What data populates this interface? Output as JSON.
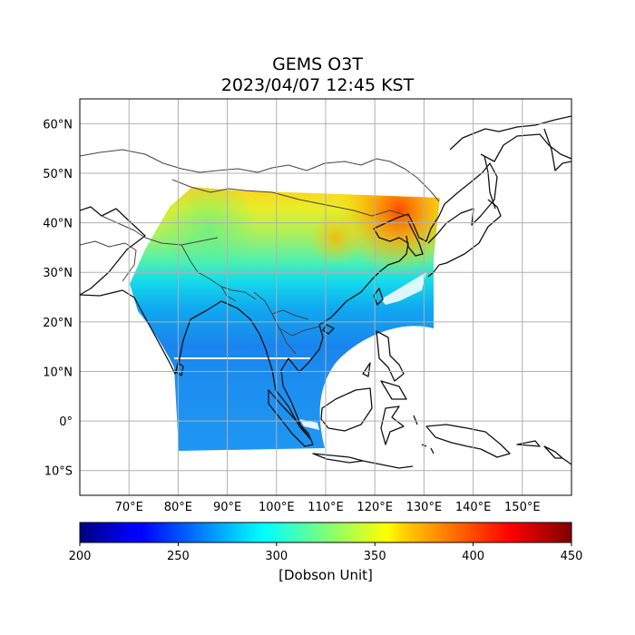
{
  "title": {
    "line1": "GEMS O3T",
    "line2": "2023/04/07 12:45 KST"
  },
  "map": {
    "lat_ticks": [
      "60°N",
      "50°N",
      "40°N",
      "30°N",
      "20°N",
      "10°N",
      "0°",
      "10°S"
    ],
    "lon_ticks": [
      "70°E",
      "80°E",
      "90°E",
      "100°E",
      "110°E",
      "120°E",
      "130°E",
      "140°E",
      "150°E"
    ],
    "lon_range": [
      60,
      160
    ],
    "lat_range": [
      -15,
      65
    ],
    "grid": true,
    "coastlines": true,
    "country_borders": true
  },
  "colorbar": {
    "ticks": [
      "200",
      "250",
      "300",
      "350",
      "400",
      "450"
    ],
    "range": [
      200,
      450
    ],
    "colormap": "jet",
    "label": "[Dobson Unit]",
    "orientation": "horizontal"
  }
}
